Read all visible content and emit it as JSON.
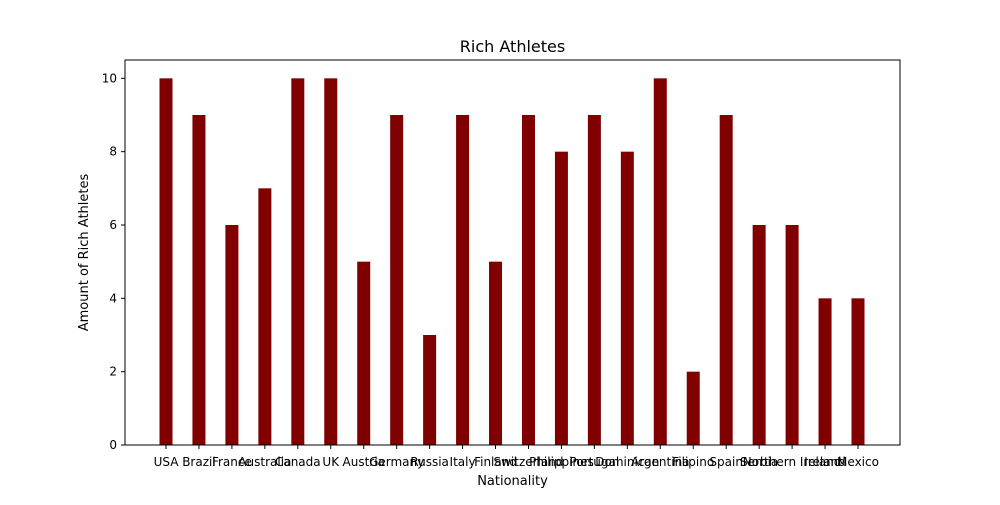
{
  "chart_data": {
    "type": "bar",
    "title": "Rich Athletes",
    "xlabel": "Nationality",
    "ylabel": "Amount of Rich Athletes",
    "categories": [
      "USA",
      "Brazil",
      "France",
      "Australia",
      "Canada",
      "UK",
      "Austria",
      "Germany",
      "Russia",
      "Italy",
      "Finland",
      "Switzerland",
      "Philippines",
      "Portugal",
      "Dominican",
      "Argentina",
      "Filipino",
      "Spain",
      "Serbia",
      "Northern Ireland",
      "Ireland",
      "Mexico"
    ],
    "values": [
      10,
      9,
      6,
      7,
      10,
      10,
      5,
      9,
      3,
      9,
      5,
      9,
      8,
      9,
      8,
      10,
      2,
      9,
      6,
      6,
      4,
      4
    ],
    "ylim": [
      0,
      10.5
    ],
    "yticks": [
      0,
      2,
      4,
      6,
      8,
      10
    ],
    "bar_color": "#800000",
    "grid": false
  }
}
